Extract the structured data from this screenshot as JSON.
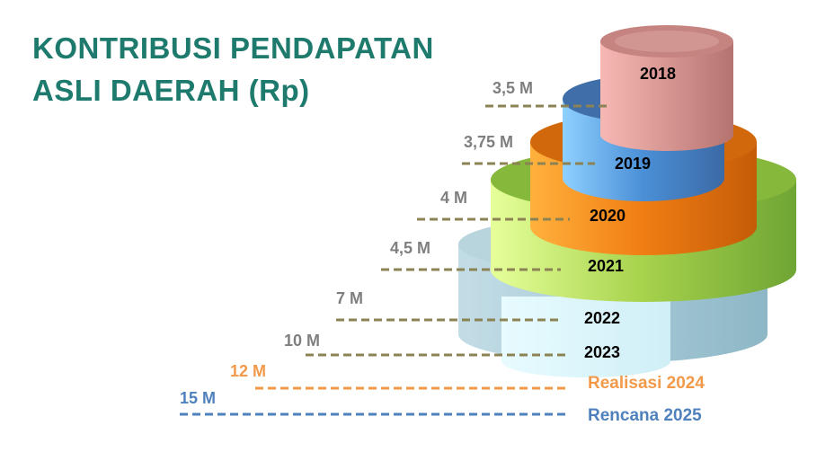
{
  "title_lines": [
    "KONTRIBUSI PENDAPATAN",
    "ASLI DAERAH (Rp)"
  ],
  "colors": {
    "title": "#1f7a6e",
    "value_label": "#7f7f7f",
    "dashed_line": "#8c8355",
    "realisasi": "#f29a4a",
    "rencana": "#4f81bd"
  },
  "chart_data": {
    "type": "bar",
    "title": "KONTRIBUSI PENDAPATAN ASLI DAERAH (Rp)",
    "unit": "Rp",
    "categories": [
      "2018",
      "2019",
      "2020",
      "2021",
      "2022",
      "2023",
      "Realisasi 2024",
      "Rencana 2025"
    ],
    "value_labels": [
      "3,5 M",
      "3,75 M",
      "4 M",
      "4,5 M",
      "7 M",
      "10 M",
      "12 M",
      "15 M"
    ],
    "values": [
      3.5,
      3.75,
      4,
      4.5,
      7,
      10,
      12,
      15
    ],
    "series": [
      {
        "values": [
          3.5,
          3.75,
          4,
          4.5,
          7,
          10,
          12,
          15
        ]
      }
    ],
    "segment_colors": [
      "#c9837f",
      "#4a7ebb",
      "#e87a17",
      "#8fbf3f",
      "#9ec4d0",
      "#a9dbe6",
      "#f29a4a",
      "#4f81bd"
    ]
  }
}
